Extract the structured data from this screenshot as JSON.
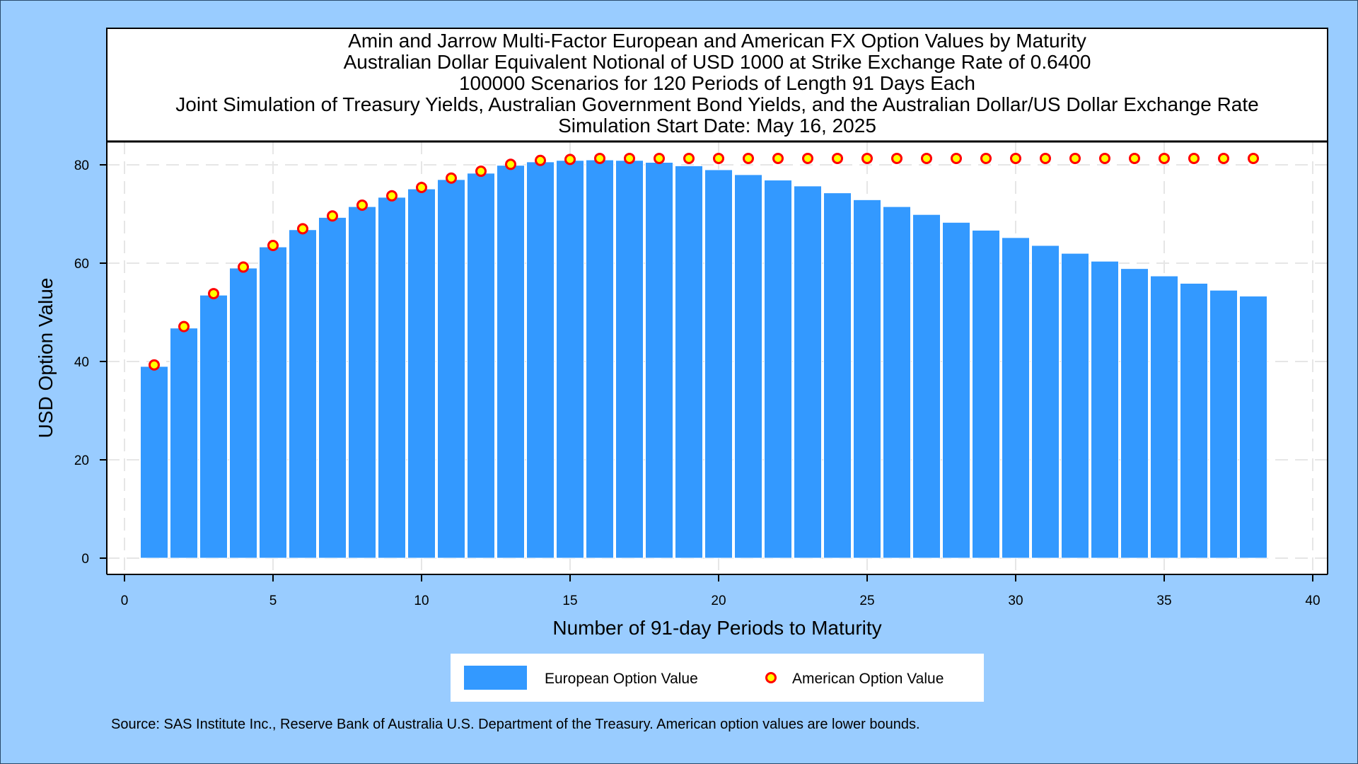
{
  "chart_data": {
    "type": "bar",
    "title_lines": [
      "Amin and Jarrow Multi-Factor European and American FX Option Values by Maturity",
      "Australian Dollar Equivalent Notional of USD 1000 at Strike Exchange Rate of  0.6400",
      "100000 Scenarios for 120 Periods of Length 91 Days Each",
      "Joint Simulation of Treasury Yields, Australian Government Bond Yields, and the Australian Dollar/US Dollar Exchange Rate",
      "Simulation Start Date: May 16, 2025"
    ],
    "xlabel": "Number of 91-day Periods to Maturity",
    "ylabel": "USD Option Value",
    "xlim": [
      0,
      40
    ],
    "ylim": [
      0,
      83
    ],
    "xticks": [
      0,
      5,
      10,
      15,
      20,
      25,
      30,
      35,
      40
    ],
    "yticks": [
      0,
      20,
      40,
      60,
      80
    ],
    "grid": true,
    "legend_position": "bottom",
    "x": [
      1,
      2,
      3,
      4,
      5,
      6,
      7,
      8,
      9,
      10,
      11,
      12,
      13,
      14,
      15,
      16,
      17,
      18,
      19,
      20,
      21,
      22,
      23,
      24,
      25,
      26,
      27,
      28,
      29,
      30,
      31,
      32,
      33,
      34,
      35,
      36,
      37,
      38
    ],
    "series": [
      {
        "name": "European Option Value",
        "kind": "bar",
        "color": "#3399ff",
        "values": [
          39.0,
          46.8,
          53.5,
          59.0,
          63.3,
          66.8,
          69.3,
          71.5,
          73.4,
          75.1,
          77.0,
          78.3,
          79.9,
          80.6,
          80.9,
          81.0,
          80.9,
          80.5,
          79.8,
          79.0,
          78.0,
          76.9,
          75.7,
          74.3,
          72.9,
          71.5,
          69.9,
          68.3,
          66.7,
          65.2,
          63.6,
          62.0,
          60.4,
          58.9,
          57.4,
          55.9,
          54.5,
          53.3
        ]
      },
      {
        "name": "American Option Value",
        "kind": "marker",
        "color": "#ff0000",
        "fill": "#ffff00",
        "values": [
          39.3,
          47.1,
          53.8,
          59.2,
          63.6,
          67.0,
          69.6,
          71.8,
          73.7,
          75.4,
          77.3,
          78.7,
          80.1,
          80.9,
          81.1,
          81.3,
          81.3,
          81.3,
          81.3,
          81.3,
          81.3,
          81.3,
          81.3,
          81.3,
          81.3,
          81.3,
          81.3,
          81.3,
          81.3,
          81.3,
          81.3,
          81.3,
          81.3,
          81.3,
          81.3,
          81.3,
          81.3,
          81.3
        ]
      }
    ],
    "footnote": "Source: SAS Institute Inc., Reserve Bank of Australia U.S. Department of the Treasury. American option values are lower bounds."
  }
}
